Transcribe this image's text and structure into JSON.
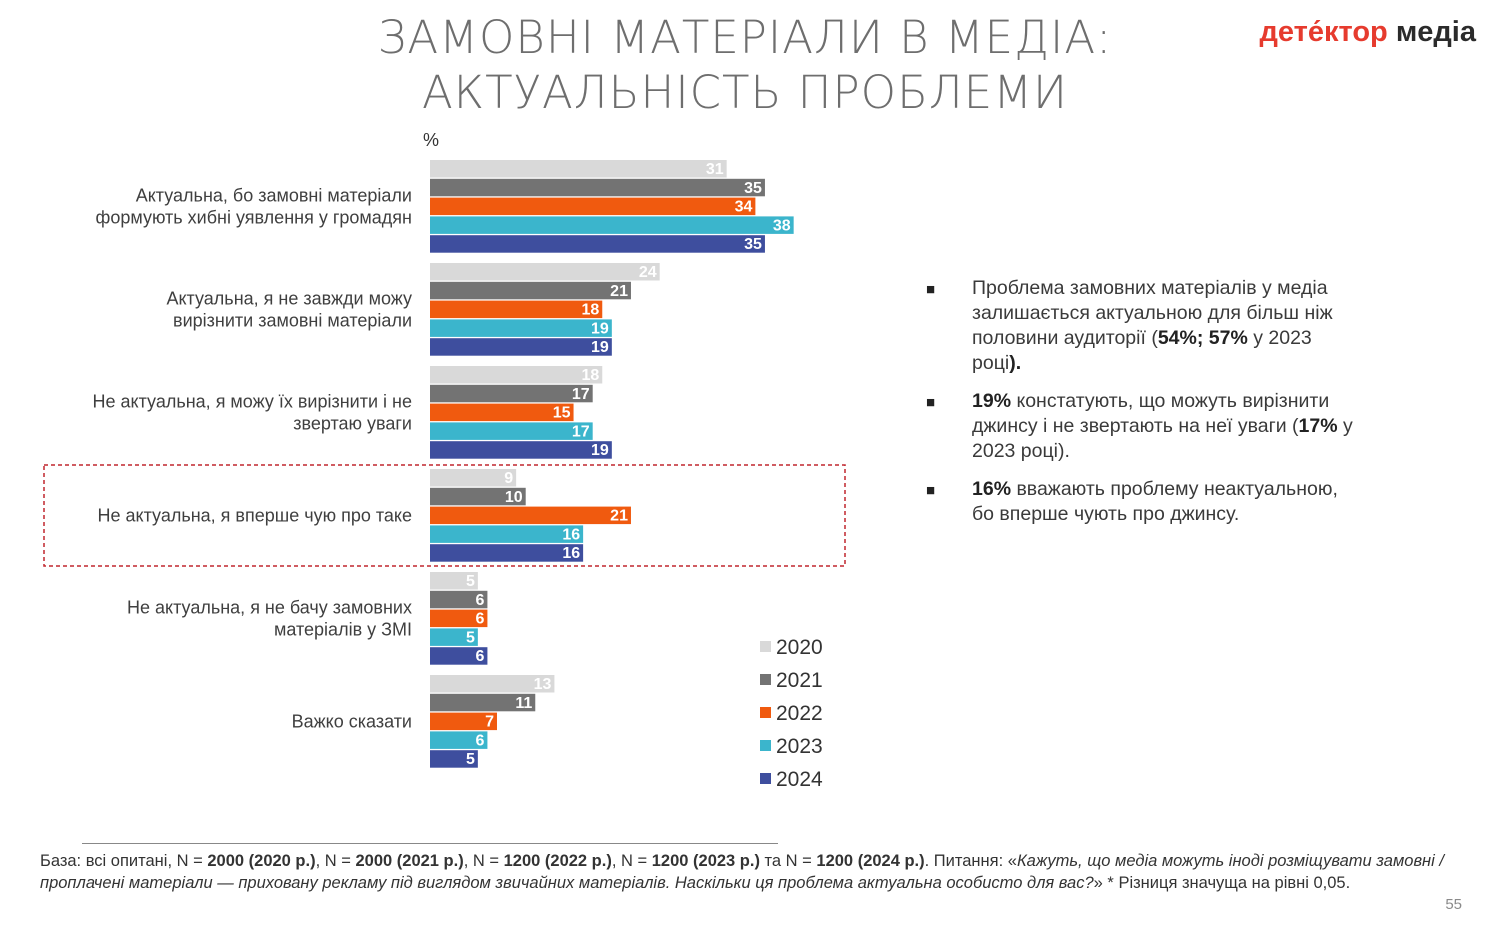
{
  "title": {
    "line1": "ЗАМОВНІ МАТЕРІАЛИ В МЕДІА:",
    "line2": "АКТУАЛЬНІСТЬ ПРОБЛЕМИ"
  },
  "logo": {
    "part1": "дете́ктор",
    "part2": " медіа"
  },
  "colors": {
    "2020": "#d9d9d9",
    "2021": "#737373",
    "2022": "#f05a0f",
    "2023": "#3bb5cc",
    "2024": "#3e4e9e",
    "highlight_border": "#c0262f"
  },
  "chart_data": {
    "type": "bar",
    "orientation": "horizontal",
    "unit": "%",
    "categories": [
      "Актуальна, бо замовні матеріали формують хибні уявлення у громадян",
      "Актуальна, я не завжди можу вирізнити замовні матеріали",
      "Не актуальна, я можу їх вирізнити і не звертаю уваги",
      "Не актуальна, я вперше чую про таке",
      "Не актуальна, я не бачу замовних матеріалів у ЗМІ",
      "Важко сказати"
    ],
    "category_lines": [
      [
        "Актуальна, бо замовні матеріали",
        "формують хибні уявлення у громадян"
      ],
      [
        "Актуальна, я не завжди можу",
        "вирізнити замовні матеріали"
      ],
      [
        "Не актуальна, я можу їх вирізнити і не",
        "звертаю уваги"
      ],
      [
        "Не актуальна, я вперше чую про таке"
      ],
      [
        "Не актуальна, я не бачу замовних",
        "матеріалів у ЗМІ"
      ],
      [
        "Важко сказати"
      ]
    ],
    "series": [
      {
        "name": "2020",
        "values": [
          31,
          24,
          18,
          9,
          5,
          13
        ]
      },
      {
        "name": "2021",
        "values": [
          35,
          21,
          17,
          10,
          6,
          11
        ]
      },
      {
        "name": "2022",
        "values": [
          34,
          18,
          15,
          21,
          6,
          7
        ]
      },
      {
        "name": "2023",
        "values": [
          38,
          19,
          17,
          16,
          5,
          6
        ]
      },
      {
        "name": "2024",
        "values": [
          35,
          19,
          19,
          16,
          6,
          5
        ]
      }
    ],
    "highlighted_category": 3,
    "legend_position": "bottom-right",
    "grid": false
  },
  "bullets": [
    {
      "parts": [
        {
          "text": "Проблема замовних матеріалів у медіа залишається актуальною для більш ніж половини аудиторії (",
          "bold": false
        },
        {
          "text": "54%;",
          "bold": true
        },
        {
          "text": " ",
          "bold": false
        },
        {
          "text": "57%",
          "bold": true
        },
        {
          "text": " у 2023 році",
          "bold": false
        },
        {
          "text": ").",
          "bold": true
        }
      ]
    },
    {
      "parts": [
        {
          "text": "19%",
          "bold": true
        },
        {
          "text": " констатують, що можуть вирізнити джинсу і не звертають на неї уваги (",
          "bold": false
        },
        {
          "text": "17%",
          "bold": true
        },
        {
          "text": " у 2023 році).",
          "bold": false
        }
      ]
    },
    {
      "parts": [
        {
          "text": " 16%",
          "bold": true
        },
        {
          "text": " вважають проблему неактуальною, бо вперше чують про джинсу.",
          "bold": false
        }
      ]
    }
  ],
  "footnote": {
    "parts": [
      {
        "text": "База: всі опитані, N = ",
        "style": "normal"
      },
      {
        "text": "2000 (2020 р.)",
        "style": "bold"
      },
      {
        "text": ", N = ",
        "style": "normal"
      },
      {
        "text": "2000 (2021 р.)",
        "style": "bold"
      },
      {
        "text": ", N = ",
        "style": "normal"
      },
      {
        "text": "1200 (2022 р.)",
        "style": "bold"
      },
      {
        "text": ", N = ",
        "style": "normal"
      },
      {
        "text": "1200 (2023 р.)",
        "style": "bold"
      },
      {
        "text": " та N = ",
        "style": "normal"
      },
      {
        "text": "1200 (2024 р.)",
        "style": "bold"
      },
      {
        "text": ". Питання: «",
        "style": "normal"
      },
      {
        "text": "Кажуть, що медіа можуть іноді розміщувати замовні / проплачені матеріали — приховану рекламу під виглядом звичайних матеріалів. Наскільки ця проблема актуальна особисто для вас?",
        "style": "italic"
      },
      {
        "text": "» * Різниця значуща на рівні 0,05.",
        "style": "normal"
      }
    ]
  },
  "page_number": "55"
}
